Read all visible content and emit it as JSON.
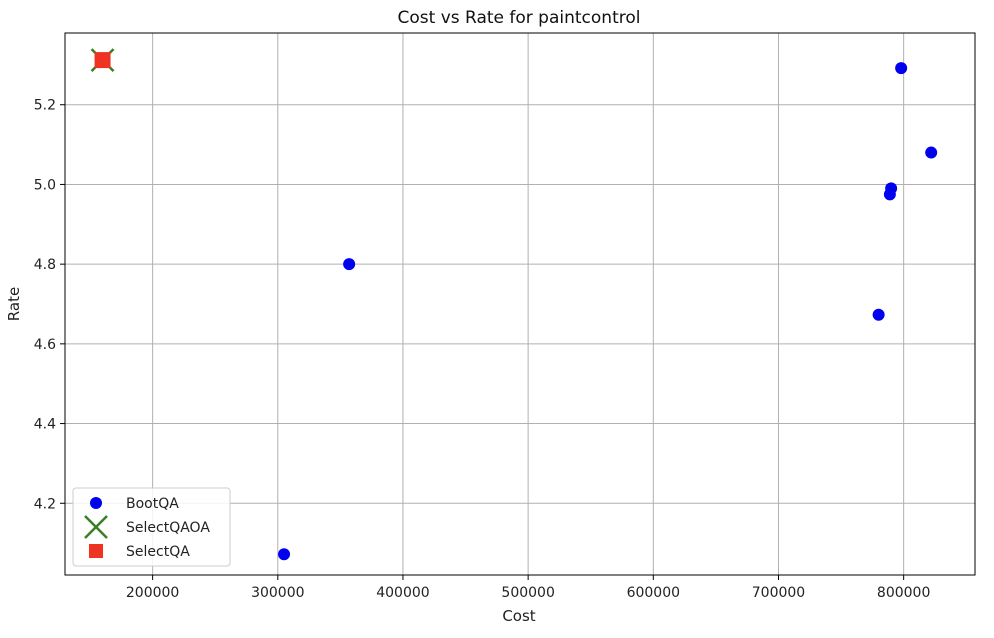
{
  "chart_data": {
    "type": "scatter",
    "title": "Cost vs Rate for paintcontrol",
    "xlabel": "Cost",
    "ylabel": "Rate",
    "xlim": [
      130000,
      857000
    ],
    "ylim": [
      4.02,
      5.38
    ],
    "xticks": [
      200000,
      300000,
      400000,
      500000,
      600000,
      700000,
      800000
    ],
    "yticks": [
      4.2,
      4.4,
      4.6,
      4.8,
      5.0,
      5.2
    ],
    "ytick_labels": [
      "4.2",
      "4.4",
      "4.6",
      "4.8",
      "5.0",
      "5.2"
    ],
    "grid": true,
    "legend_position": "lower-left",
    "series": [
      {
        "name": "BootQA",
        "marker": "circle",
        "color": "#0000ee",
        "points": [
          {
            "x": 305000,
            "y": 4.072
          },
          {
            "x": 357000,
            "y": 4.8
          },
          {
            "x": 780000,
            "y": 4.673
          },
          {
            "x": 789000,
            "y": 4.975
          },
          {
            "x": 790000,
            "y": 4.99
          },
          {
            "x": 798000,
            "y": 5.292
          },
          {
            "x": 822000,
            "y": 5.08
          }
        ]
      },
      {
        "name": "SelectQAOA",
        "marker": "x",
        "color": "#3a7d22",
        "points": [
          {
            "x": 160000,
            "y": 5.312
          }
        ]
      },
      {
        "name": "SelectQA",
        "marker": "square",
        "color": "#ee3322",
        "points": [
          {
            "x": 160000,
            "y": 5.312
          }
        ]
      }
    ]
  }
}
